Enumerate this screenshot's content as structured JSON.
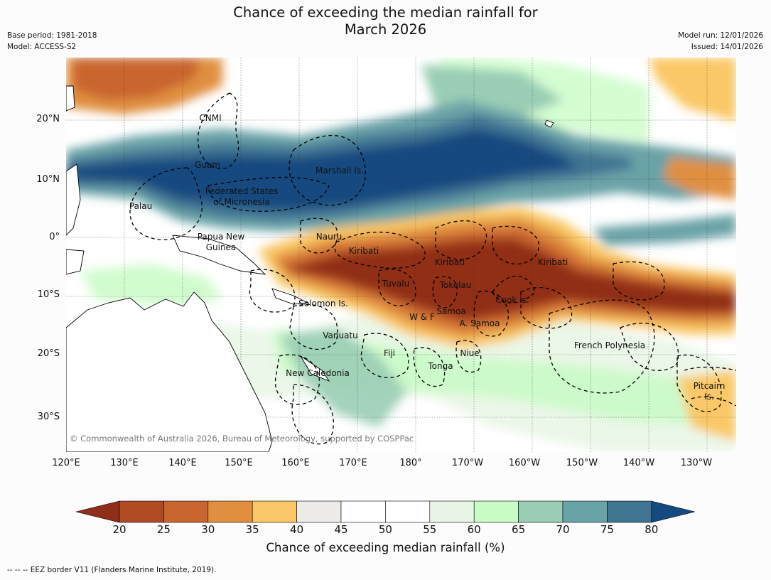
{
  "header": {
    "title_line1": "Chance of exceeding the median rainfall for",
    "title_line2": "March 2026",
    "base_period": "Base period: 1981-2018",
    "model": "Model: ACCESS-S2",
    "model_run": "Model run: 12/01/2026",
    "issued": "Issued: 14/01/2026"
  },
  "map": {
    "lon_range": [
      120,
      235
    ],
    "lat_range": [
      -36,
      31
    ],
    "lat_ticks": [
      "20°N",
      "10°N",
      "0°",
      "10°S",
      "20°S",
      "30°S"
    ],
    "lon_ticks": [
      "120°E",
      "130°E",
      "140°E",
      "150°E",
      "160°E",
      "170°E",
      "180°",
      "170°W",
      "160°W",
      "150°W",
      "140°W",
      "130°W"
    ],
    "regions": [
      {
        "name": "CNMI"
      },
      {
        "name": "Guam"
      },
      {
        "name": "Marshall Is."
      },
      {
        "name": "Palau"
      },
      {
        "name": "Federated States"
      },
      {
        "name": "of Micronesia"
      },
      {
        "name": "Papua New"
      },
      {
        "name": "Guinea"
      },
      {
        "name": "Nauru"
      },
      {
        "name": "Kiribati"
      },
      {
        "name": "Kiribati"
      },
      {
        "name": "Kiribati"
      },
      {
        "name": "Tuvalu"
      },
      {
        "name": "Tokelau"
      },
      {
        "name": "Cook Is."
      },
      {
        "name": "Solomon Is."
      },
      {
        "name": "Samoa"
      },
      {
        "name": "W & F"
      },
      {
        "name": "A. Samoa"
      },
      {
        "name": "Vanuatu"
      },
      {
        "name": "French Polynesia"
      },
      {
        "name": "Fiji"
      },
      {
        "name": "Niue"
      },
      {
        "name": "Tonga"
      },
      {
        "name": "New Caledonia"
      },
      {
        "name": "Pitcairn"
      },
      {
        "name": "Is."
      }
    ],
    "copyright": "© Commonwealth of Australia 2026, Bureau of Meteorology, supported by COSPPac"
  },
  "colorbar": {
    "ticks": [
      "20",
      "25",
      "30",
      "35",
      "40",
      "45",
      "50",
      "55",
      "60",
      "65",
      "70",
      "75",
      "80"
    ],
    "colors": [
      "#912e19",
      "#af4a23",
      "#c9652f",
      "#e08f41",
      "#fac866",
      "#ecebe7",
      "#ffffff",
      "#ffffff",
      "#e9f6e6",
      "#c9fcc5",
      "#9acdb5",
      "#6aa3a7",
      "#3f7493",
      "#134a80"
    ],
    "label": "Chance of exceeding median rainfall (%)"
  },
  "footnote": "--  --  -- EEZ border V11 (Flanders Marine Institute, 2019)."
}
